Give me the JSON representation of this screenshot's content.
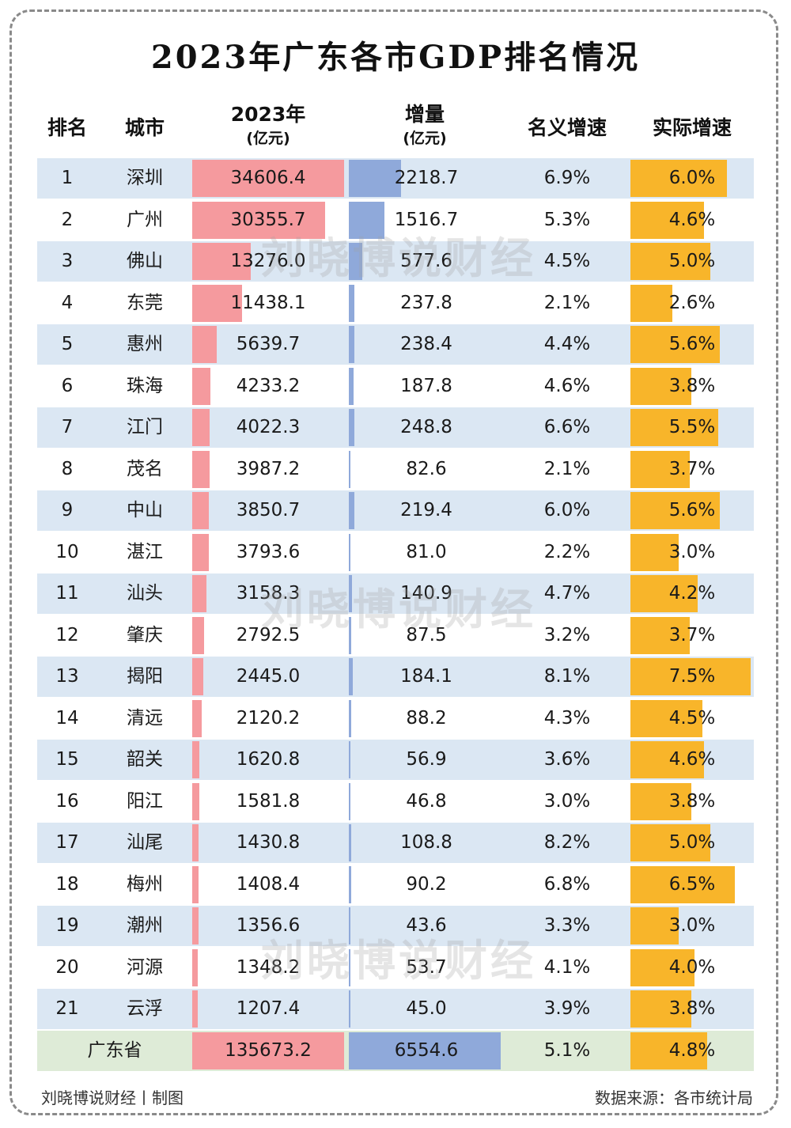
{
  "title": "2023年广东各市GDP排名情况",
  "headers": {
    "rank": "排名",
    "city": "城市",
    "gdp": "2023年",
    "gdp_unit": "(亿元)",
    "increase": "增量",
    "increase_unit": "(亿元)",
    "nominal": "名义增速",
    "real": "实际增速"
  },
  "colors": {
    "gdp_bar": "#f59a9e",
    "increase_bar": "#8fa9da",
    "real_bar": "#f8b52a",
    "row_shade": "#dbe7f3",
    "total_row": "#deebd7"
  },
  "watermark": "刘晓博说财经",
  "footer": {
    "left": "刘晓博说财经丨制图",
    "right": "数据来源：各市统计局"
  },
  "chart_data": {
    "type": "table",
    "columns": [
      "排名",
      "城市",
      "2023年(亿元)",
      "增量(亿元)",
      "名义增速",
      "实际增速"
    ],
    "rows": [
      {
        "rank": "1",
        "city": "深圳",
        "gdp": "34606.4",
        "increase": "2218.7",
        "nominal": "6.9%",
        "real": "6.0%"
      },
      {
        "rank": "2",
        "city": "广州",
        "gdp": "30355.7",
        "increase": "1516.7",
        "nominal": "5.3%",
        "real": "4.6%"
      },
      {
        "rank": "3",
        "city": "佛山",
        "gdp": "13276.0",
        "increase": "577.6",
        "nominal": "4.5%",
        "real": "5.0%"
      },
      {
        "rank": "4",
        "city": "东莞",
        "gdp": "11438.1",
        "increase": "237.8",
        "nominal": "2.1%",
        "real": "2.6%"
      },
      {
        "rank": "5",
        "city": "惠州",
        "gdp": "5639.7",
        "increase": "238.4",
        "nominal": "4.4%",
        "real": "5.6%"
      },
      {
        "rank": "6",
        "city": "珠海",
        "gdp": "4233.2",
        "increase": "187.8",
        "nominal": "4.6%",
        "real": "3.8%"
      },
      {
        "rank": "7",
        "city": "江门",
        "gdp": "4022.3",
        "increase": "248.8",
        "nominal": "6.6%",
        "real": "5.5%"
      },
      {
        "rank": "8",
        "city": "茂名",
        "gdp": "3987.2",
        "increase": "82.6",
        "nominal": "2.1%",
        "real": "3.7%"
      },
      {
        "rank": "9",
        "city": "中山",
        "gdp": "3850.7",
        "increase": "219.4",
        "nominal": "6.0%",
        "real": "5.6%"
      },
      {
        "rank": "10",
        "city": "湛江",
        "gdp": "3793.6",
        "increase": "81.0",
        "nominal": "2.2%",
        "real": "3.0%"
      },
      {
        "rank": "11",
        "city": "汕头",
        "gdp": "3158.3",
        "increase": "140.9",
        "nominal": "4.7%",
        "real": "4.2%"
      },
      {
        "rank": "12",
        "city": "肇庆",
        "gdp": "2792.5",
        "increase": "87.5",
        "nominal": "3.2%",
        "real": "3.7%"
      },
      {
        "rank": "13",
        "city": "揭阳",
        "gdp": "2445.0",
        "increase": "184.1",
        "nominal": "8.1%",
        "real": "7.5%"
      },
      {
        "rank": "14",
        "city": "清远",
        "gdp": "2120.2",
        "increase": "88.2",
        "nominal": "4.3%",
        "real": "4.5%"
      },
      {
        "rank": "15",
        "city": "韶关",
        "gdp": "1620.8",
        "increase": "56.9",
        "nominal": "3.6%",
        "real": "4.6%"
      },
      {
        "rank": "16",
        "city": "阳江",
        "gdp": "1581.8",
        "increase": "46.8",
        "nominal": "3.0%",
        "real": "3.8%"
      },
      {
        "rank": "17",
        "city": "汕尾",
        "gdp": "1430.8",
        "increase": "108.8",
        "nominal": "8.2%",
        "real": "5.0%"
      },
      {
        "rank": "18",
        "city": "梅州",
        "gdp": "1408.4",
        "increase": "90.2",
        "nominal": "6.8%",
        "real": "6.5%"
      },
      {
        "rank": "19",
        "city": "潮州",
        "gdp": "1356.6",
        "increase": "43.6",
        "nominal": "3.3%",
        "real": "3.0%"
      },
      {
        "rank": "20",
        "city": "河源",
        "gdp": "1348.2",
        "increase": "53.7",
        "nominal": "4.1%",
        "real": "4.0%"
      },
      {
        "rank": "21",
        "city": "云浮",
        "gdp": "1207.4",
        "increase": "45.0",
        "nominal": "3.9%",
        "real": "3.8%"
      }
    ],
    "total": {
      "city": "广东省",
      "gdp": "135673.2",
      "increase": "6554.6",
      "nominal": "5.1%",
      "real": "4.8%"
    },
    "bar_scales": {
      "gdp_max": 34606.4,
      "increase_max": 2218.7,
      "real_max": 7.5
    }
  }
}
